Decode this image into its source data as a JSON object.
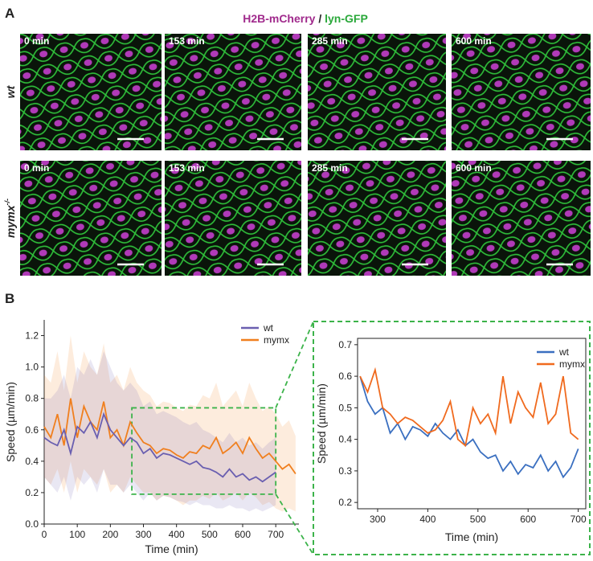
{
  "panel_a": {
    "label": "A",
    "title_parts": [
      "H2B-mCherry",
      " / ",
      "lyn-GFP"
    ],
    "rows": [
      {
        "label": "wt",
        "images": [
          "0 min",
          "153 min",
          "285 min",
          "600 min"
        ]
      },
      {
        "label": "mymx",
        "sup": "-/-",
        "images": [
          "0 min",
          "153 min",
          "285 min",
          "600 min"
        ]
      }
    ]
  },
  "panel_b_label": "B",
  "chart_data": [
    {
      "type": "line",
      "xlabel": "Time (min)",
      "ylabel": "Speed (µm/min)",
      "xlim": [
        0,
        770
      ],
      "ylim": [
        0,
        1.3
      ],
      "xticks": [
        0,
        100,
        200,
        300,
        400,
        500,
        600,
        700
      ],
      "yticks": [
        {
          "value": 0,
          "label": "0.0"
        },
        0.2,
        0.4,
        0.6,
        0.8,
        {
          "value": 1,
          "label": "1.0"
        },
        1.2
      ],
      "highlight": {
        "x": [
          265,
          700
        ],
        "y": [
          0.19,
          0.74
        ],
        "color": "#3cb34a"
      },
      "series": [
        {
          "name": "mymx",
          "color": "#f07f1e",
          "x": [
            0,
            20,
            40,
            60,
            80,
            100,
            120,
            140,
            160,
            180,
            200,
            220,
            240,
            260,
            280,
            300,
            320,
            340,
            360,
            380,
            400,
            420,
            440,
            460,
            480,
            500,
            520,
            540,
            560,
            580,
            600,
            620,
            640,
            660,
            680,
            700,
            720,
            740,
            760
          ],
          "values": [
            0.62,
            0.55,
            0.7,
            0.5,
            0.8,
            0.55,
            0.75,
            0.65,
            0.6,
            0.78,
            0.55,
            0.6,
            0.5,
            0.65,
            0.58,
            0.52,
            0.5,
            0.45,
            0.48,
            0.47,
            0.44,
            0.42,
            0.46,
            0.45,
            0.5,
            0.48,
            0.55,
            0.45,
            0.48,
            0.52,
            0.45,
            0.55,
            0.48,
            0.42,
            0.45,
            0.4,
            0.35,
            0.38,
            0.32
          ],
          "lower": [
            0.3,
            0.25,
            0.35,
            0.2,
            0.4,
            0.2,
            0.35,
            0.3,
            0.25,
            0.35,
            0.2,
            0.25,
            0.2,
            0.3,
            0.25,
            0.2,
            0.2,
            0.15,
            0.18,
            0.17,
            0.15,
            0.12,
            0.15,
            0.15,
            0.18,
            0.16,
            0.2,
            0.15,
            0.17,
            0.2,
            0.15,
            0.2,
            0.17,
            0.12,
            0.14,
            0.1,
            0.08,
            0.1,
            0.08
          ],
          "upper": [
            0.95,
            0.9,
            1.1,
            0.85,
            1.2,
            0.9,
            1.1,
            1.0,
            0.95,
            1.15,
            0.9,
            0.95,
            0.85,
            1.0,
            0.9,
            0.85,
            0.82,
            0.75,
            0.78,
            0.77,
            0.74,
            0.72,
            0.76,
            0.75,
            0.82,
            0.8,
            0.9,
            0.75,
            0.8,
            0.85,
            0.75,
            0.9,
            0.8,
            0.72,
            0.75,
            0.7,
            0.62,
            0.66,
            0.56
          ]
        },
        {
          "name": "wt",
          "color": "#6a5fb0",
          "x": [
            0,
            20,
            40,
            60,
            80,
            100,
            120,
            140,
            160,
            180,
            200,
            220,
            240,
            260,
            280,
            300,
            320,
            340,
            360,
            380,
            400,
            420,
            440,
            460,
            480,
            500,
            520,
            540,
            560,
            580,
            600,
            620,
            640,
            660,
            680,
            700
          ],
          "values": [
            0.55,
            0.52,
            0.5,
            0.6,
            0.45,
            0.62,
            0.58,
            0.65,
            0.55,
            0.7,
            0.6,
            0.55,
            0.5,
            0.55,
            0.52,
            0.45,
            0.48,
            0.42,
            0.45,
            0.44,
            0.42,
            0.4,
            0.38,
            0.4,
            0.36,
            0.35,
            0.33,
            0.3,
            0.35,
            0.3,
            0.32,
            0.28,
            0.3,
            0.27,
            0.3,
            0.33
          ],
          "lower": [
            0.3,
            0.25,
            0.2,
            0.3,
            0.15,
            0.3,
            0.25,
            0.3,
            0.2,
            0.35,
            0.25,
            0.25,
            0.2,
            0.25,
            0.2,
            0.15,
            0.2,
            0.15,
            0.18,
            0.17,
            0.15,
            0.14,
            0.12,
            0.14,
            0.12,
            0.12,
            0.1,
            0.1,
            0.12,
            0.1,
            0.1,
            0.08,
            0.1,
            0.08,
            0.1,
            0.12
          ],
          "upper": [
            0.8,
            0.8,
            0.85,
            0.95,
            0.8,
            1.0,
            0.95,
            1.05,
            0.95,
            1.1,
            1.0,
            0.9,
            0.85,
            0.9,
            0.85,
            0.75,
            0.78,
            0.7,
            0.72,
            0.7,
            0.68,
            0.65,
            0.63,
            0.65,
            0.6,
            0.58,
            0.55,
            0.52,
            0.58,
            0.52,
            0.55,
            0.5,
            0.52,
            0.48,
            0.52,
            0.55
          ]
        }
      ]
    },
    {
      "type": "line",
      "xlabel": "Time (min)",
      "ylabel": "Speed (µm/min)",
      "xlim": [
        260,
        715
      ],
      "ylim": [
        0.18,
        0.72
      ],
      "xticks": [
        300,
        400,
        500,
        600,
        700
      ],
      "yticks": [
        0.2,
        0.3,
        0.4,
        0.5,
        0.6,
        0.7
      ],
      "series": [
        {
          "name": "wt",
          "color": "#3a6fc0",
          "x": [
            265,
            280,
            295,
            310,
            325,
            340,
            355,
            370,
            385,
            400,
            415,
            430,
            445,
            460,
            475,
            490,
            505,
            520,
            535,
            550,
            565,
            580,
            595,
            610,
            625,
            640,
            655,
            670,
            685,
            700
          ],
          "values": [
            0.6,
            0.52,
            0.48,
            0.5,
            0.42,
            0.45,
            0.4,
            0.44,
            0.43,
            0.41,
            0.45,
            0.42,
            0.4,
            0.43,
            0.38,
            0.4,
            0.36,
            0.34,
            0.35,
            0.3,
            0.33,
            0.29,
            0.32,
            0.31,
            0.35,
            0.3,
            0.33,
            0.28,
            0.31,
            0.37
          ]
        },
        {
          "name": "mymx",
          "color": "#f06a1e",
          "x": [
            265,
            280,
            295,
            310,
            325,
            340,
            355,
            370,
            385,
            400,
            415,
            430,
            445,
            460,
            475,
            490,
            505,
            520,
            535,
            550,
            565,
            580,
            595,
            610,
            625,
            640,
            655,
            670,
            685,
            700
          ],
          "values": [
            0.6,
            0.55,
            0.62,
            0.5,
            0.48,
            0.45,
            0.47,
            0.46,
            0.44,
            0.42,
            0.43,
            0.46,
            0.52,
            0.4,
            0.38,
            0.5,
            0.45,
            0.48,
            0.42,
            0.6,
            0.45,
            0.55,
            0.5,
            0.47,
            0.58,
            0.45,
            0.48,
            0.6,
            0.42,
            0.4
          ]
        }
      ]
    }
  ]
}
